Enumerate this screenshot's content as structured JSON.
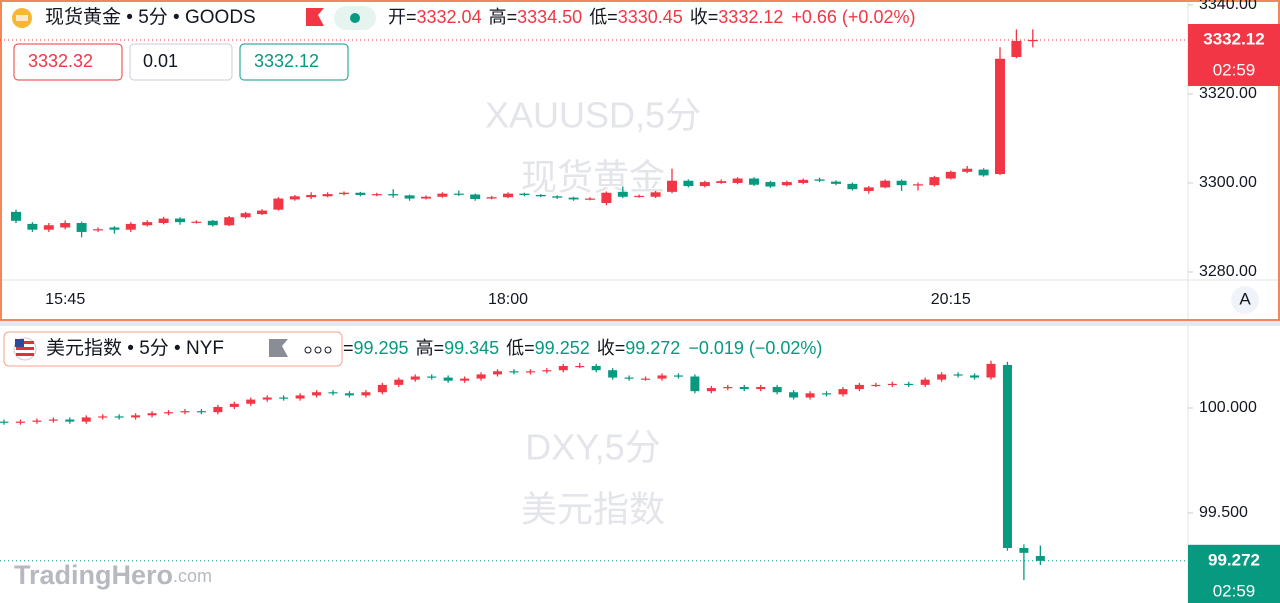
{
  "chart_data": [
    {
      "type": "candlestick",
      "symbol": "现货黄金 • 5分 • GOODS",
      "legend": [
        {
          "label": "开=",
          "value": "3332.04"
        },
        {
          "label": "高=",
          "value": "3334.50"
        },
        {
          "label": "低=",
          "value": "3330.45"
        },
        {
          "label": "收=",
          "value": "3332.12"
        }
      ],
      "change": "+0.66 (+0.02%)",
      "quote": [
        "3332.32",
        "0.01",
        "3332.12"
      ],
      "watermark": [
        "XAUUSD,5分",
        "现货黄金"
      ],
      "countdown": "02:59",
      "up_color": "#f23645",
      "down_color": "#089981",
      "categories": [
        null,
        null,
        null,
        "15:45",
        null,
        null,
        null,
        null,
        null,
        null,
        null,
        null,
        null,
        null,
        null,
        null,
        null,
        null,
        null,
        null,
        null,
        null,
        null,
        null,
        null,
        null,
        null,
        null,
        null,
        null,
        "18:00",
        null,
        null,
        null,
        null,
        null,
        null,
        null,
        null,
        null,
        null,
        null,
        null,
        null,
        null,
        null,
        null,
        null,
        null,
        null,
        null,
        null,
        null,
        null,
        null,
        null,
        null,
        "20:15",
        null,
        null,
        null,
        null,
        null
      ],
      "open": [
        3293.5,
        3290.8,
        3289.5,
        3290.0,
        3291.0,
        3289.5,
        3290.0,
        3289.5,
        3290.5,
        3291.0,
        3292.0,
        3291.2,
        3291.5,
        3290.5,
        3292.3,
        3293.0,
        3294.0,
        3296.3,
        3296.8,
        3297.0,
        3297.5,
        3297.8,
        3297.3,
        3297.5,
        3297.2,
        3296.5,
        3296.9,
        3297.6,
        3297.4,
        3296.5,
        3296.8,
        3297.6,
        3297.3,
        3297.0,
        3296.7,
        3296.4,
        3295.5,
        3298.0,
        3297.0,
        3296.9,
        3298.0,
        3300.5,
        3299.3,
        3300.0,
        3300.0,
        3301.0,
        3300.2,
        3299.5,
        3300.0,
        3300.8,
        3300.3,
        3299.8,
        3298.2,
        3299.0,
        3300.5,
        3299.6,
        3299.5,
        3301.0,
        3302.5,
        3303.0,
        3302.0,
        3328.3,
        3332.04
      ],
      "high": [
        3294.0,
        3291.2,
        3291.0,
        3291.6,
        3291.3,
        3290.0,
        3290.3,
        3291.2,
        3291.6,
        3292.4,
        3292.3,
        3291.6,
        3291.7,
        3292.6,
        3293.5,
        3294.1,
        3296.8,
        3297.3,
        3297.9,
        3297.9,
        3298.1,
        3298.0,
        3297.8,
        3298.6,
        3297.4,
        3297.2,
        3297.9,
        3298.3,
        3297.6,
        3297.1,
        3297.9,
        3297.8,
        3297.5,
        3297.2,
        3296.9,
        3296.8,
        3298.1,
        3299.2,
        3297.4,
        3298.2,
        3303.2,
        3300.8,
        3300.5,
        3300.8,
        3301.3,
        3301.3,
        3300.5,
        3300.5,
        3301.0,
        3301.2,
        3300.6,
        3300.1,
        3299.3,
        3300.8,
        3300.8,
        3300.1,
        3301.6,
        3302.8,
        3303.8,
        3303.3,
        3330.5,
        3334.5,
        3334.5
      ],
      "low": [
        3291.0,
        3289.0,
        3289.0,
        3289.6,
        3287.8,
        3289.0,
        3288.6,
        3289.0,
        3290.2,
        3290.7,
        3290.6,
        3290.9,
        3290.2,
        3290.3,
        3292.0,
        3292.8,
        3293.8,
        3296.0,
        3296.4,
        3296.8,
        3297.2,
        3297.0,
        3297.0,
        3296.7,
        3296.0,
        3296.3,
        3296.7,
        3297.1,
        3296.0,
        3296.3,
        3296.6,
        3297.0,
        3296.8,
        3296.4,
        3296.0,
        3296.1,
        3295.0,
        3296.6,
        3296.7,
        3296.6,
        3297.7,
        3299.0,
        3299.0,
        3299.8,
        3299.7,
        3299.3,
        3298.9,
        3299.2,
        3299.7,
        3300.2,
        3299.5,
        3298.3,
        3297.6,
        3298.8,
        3298.2,
        3298.3,
        3299.2,
        3300.8,
        3302.2,
        3301.4,
        3301.8,
        3328.0,
        3330.45
      ],
      "close": [
        3291.5,
        3289.5,
        3290.5,
        3291.0,
        3289.0,
        3289.6,
        3289.5,
        3290.8,
        3291.2,
        3292.0,
        3291.2,
        3291.3,
        3290.5,
        3292.3,
        3293.2,
        3293.8,
        3296.5,
        3297.0,
        3297.3,
        3297.5,
        3297.8,
        3297.3,
        3297.5,
        3297.2,
        3296.5,
        3296.9,
        3297.6,
        3297.4,
        3296.4,
        3296.8,
        3297.6,
        3297.3,
        3297.0,
        3296.7,
        3296.3,
        3296.5,
        3297.8,
        3296.9,
        3297.1,
        3297.9,
        3300.5,
        3299.3,
        3300.2,
        3300.4,
        3301.0,
        3299.6,
        3299.2,
        3300.2,
        3300.7,
        3300.5,
        3299.8,
        3298.6,
        3299.0,
        3300.5,
        3299.5,
        3299.7,
        3301.3,
        3302.5,
        3303.2,
        3301.7,
        3327.9,
        3331.9,
        3332.12
      ],
      "ylim": [
        3278.2,
        3341.1
      ],
      "yticks": [
        {
          "value": 3280,
          "label": "3280.00"
        },
        {
          "value": 3300,
          "label": "3300.00"
        },
        {
          "value": 3320,
          "label": "3320.00"
        },
        {
          "value": 3340,
          "label": "3340.00"
        }
      ]
    },
    {
      "type": "candlestick",
      "symbol": "美元指数 • 5分 • NYF",
      "legend": [
        {
          "label": "=",
          "value": "99.295"
        },
        {
          "label": "高=",
          "value": "99.345"
        },
        {
          "label": "低=",
          "value": "99.252"
        },
        {
          "label": "收=",
          "value": "99.272"
        }
      ],
      "change": "−0.019 (−0.02%)",
      "watermark": [
        "DXY,5分",
        "美元指数"
      ],
      "countdown": "02:59",
      "up_color": "#f23645",
      "down_color": "#089981",
      "open": [
        99.935,
        99.93,
        99.935,
        99.94,
        99.945,
        99.935,
        99.955,
        99.96,
        99.955,
        99.965,
        99.975,
        99.98,
        99.985,
        99.98,
        100.005,
        100.02,
        100.04,
        100.05,
        100.045,
        100.06,
        100.075,
        100.07,
        100.06,
        100.075,
        100.11,
        100.135,
        100.15,
        100.145,
        100.13,
        100.14,
        100.16,
        100.175,
        100.17,
        100.175,
        100.18,
        100.2,
        100.2,
        100.18,
        100.145,
        100.14,
        100.14,
        100.155,
        100.15,
        100.08,
        100.095,
        100.1,
        100.09,
        100.1,
        100.075,
        100.05,
        100.07,
        100.065,
        100.09,
        100.11,
        100.11,
        100.115,
        100.11,
        100.135,
        100.16,
        100.155,
        100.145,
        100.205,
        99.333,
        99.295
      ],
      "high": [
        99.945,
        99.945,
        99.95,
        99.955,
        99.955,
        99.965,
        99.97,
        99.97,
        99.975,
        99.985,
        99.99,
        99.995,
        99.995,
        100.015,
        100.03,
        100.05,
        100.06,
        100.06,
        100.07,
        100.085,
        100.085,
        100.08,
        100.085,
        100.12,
        100.145,
        100.16,
        100.16,
        100.155,
        100.15,
        100.17,
        100.185,
        100.185,
        100.185,
        100.19,
        100.21,
        100.215,
        100.21,
        100.19,
        100.155,
        100.15,
        100.165,
        100.165,
        100.16,
        100.105,
        100.11,
        100.11,
        100.11,
        100.11,
        100.085,
        100.08,
        100.08,
        100.1,
        100.12,
        100.12,
        100.125,
        100.125,
        100.145,
        100.17,
        100.17,
        100.165,
        100.225,
        100.22,
        99.35,
        99.345
      ],
      "low": [
        99.92,
        99.92,
        99.925,
        99.93,
        99.925,
        99.925,
        99.945,
        99.945,
        99.945,
        99.955,
        99.965,
        99.97,
        99.97,
        99.97,
        99.995,
        100.01,
        100.03,
        100.035,
        100.035,
        100.05,
        100.06,
        100.05,
        100.05,
        100.065,
        100.1,
        100.125,
        100.135,
        100.12,
        100.12,
        100.13,
        100.15,
        100.16,
        100.16,
        100.165,
        100.17,
        100.19,
        100.17,
        100.135,
        100.13,
        100.13,
        100.13,
        100.14,
        100.07,
        100.07,
        100.085,
        100.08,
        100.08,
        100.065,
        100.04,
        100.04,
        100.055,
        100.055,
        100.08,
        100.1,
        100.1,
        100.1,
        100.1,
        100.125,
        100.145,
        100.135,
        100.135,
        99.32,
        99.18,
        99.252
      ],
      "close": [
        99.93,
        99.935,
        99.94,
        99.945,
        99.935,
        99.955,
        99.96,
        99.955,
        99.965,
        99.975,
        99.98,
        99.985,
        99.98,
        100.005,
        100.02,
        100.04,
        100.05,
        100.045,
        100.06,
        100.075,
        100.07,
        100.06,
        100.075,
        100.11,
        100.135,
        100.15,
        100.145,
        100.13,
        100.14,
        100.16,
        100.175,
        100.17,
        100.175,
        100.18,
        100.2,
        100.2,
        100.18,
        100.145,
        100.14,
        100.14,
        100.155,
        100.15,
        100.08,
        100.095,
        100.1,
        100.09,
        100.1,
        100.075,
        100.05,
        100.07,
        100.065,
        100.09,
        100.11,
        100.11,
        100.115,
        100.11,
        100.135,
        100.16,
        100.155,
        100.145,
        100.21,
        99.333,
        99.31,
        99.272
      ],
      "ylim": [
        99.071,
        100.381
      ],
      "yticks": [
        {
          "value": 99.5,
          "label": "99.500"
        },
        {
          "value": 100,
          "label": "100.000"
        }
      ]
    }
  ],
  "branding": {
    "name": "TradingHero",
    "suffix": ".com"
  },
  "toolbar": {
    "auto_scale": "A"
  }
}
